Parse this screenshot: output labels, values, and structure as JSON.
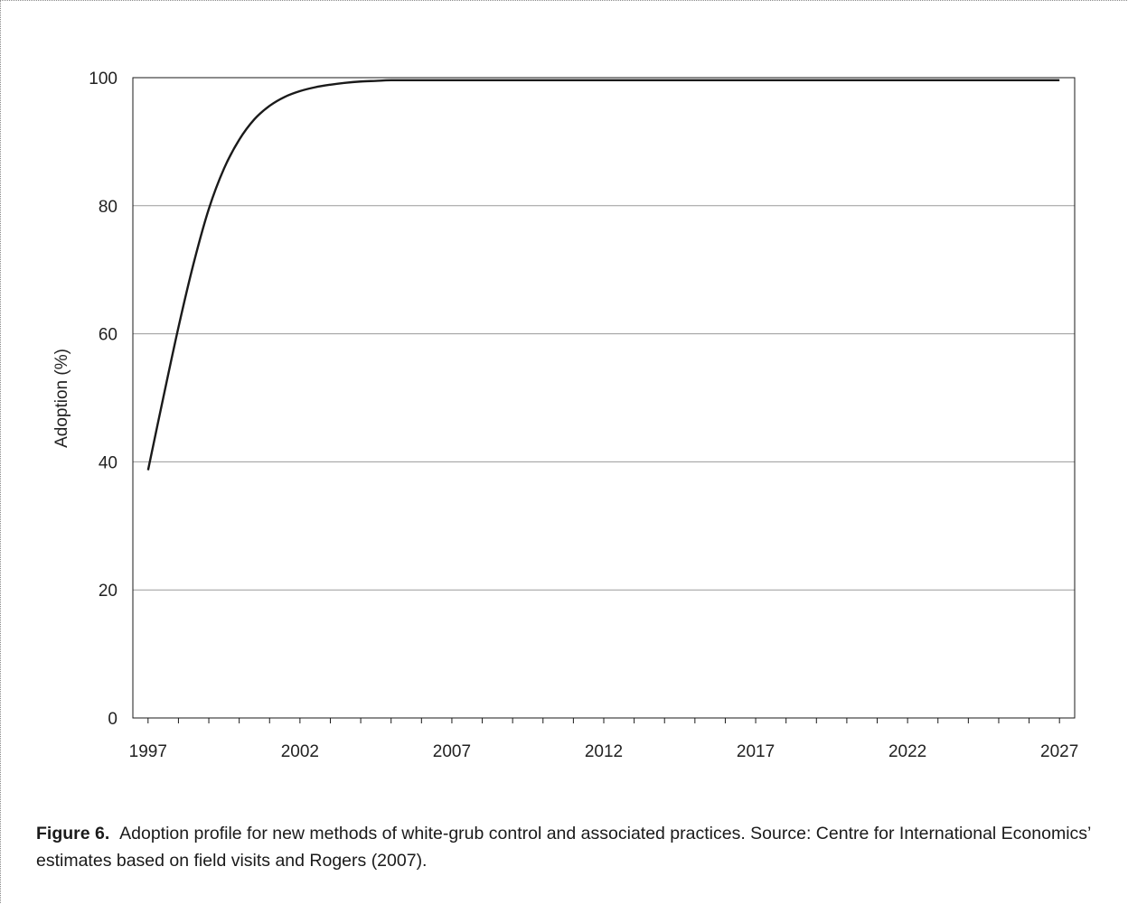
{
  "chart_data": {
    "type": "line",
    "title": "",
    "xlabel": "",
    "ylabel": "Adoption (%)",
    "xlim": [
      1996.5,
      2027.5
    ],
    "ylim": [
      0,
      100
    ],
    "x_tick_labels": [
      "1997",
      "2002",
      "2007",
      "2012",
      "2017",
      "2022",
      "2027"
    ],
    "y_tick_labels": [
      "0",
      "20",
      "40",
      "60",
      "80",
      "100"
    ],
    "y_ticks": [
      0,
      20,
      40,
      60,
      80,
      100
    ],
    "grid": true,
    "legend": "none",
    "series": [
      {
        "color": "#1a1a1a",
        "x": [
          1997.0,
          1997.5,
          1998.0,
          1998.5,
          1999.0,
          1999.5,
          2000.0,
          2000.5,
          2001.0,
          2001.5,
          2002.0,
          2002.5,
          2003.0,
          2003.5,
          2004.0,
          2004.5,
          2005.0,
          2006.0,
          2008.0,
          2012.0,
          2017.0,
          2022.0,
          2027.0
        ],
        "y": [
          38.7,
          50.0,
          61.0,
          71.0,
          79.5,
          85.8,
          90.3,
          93.5,
          95.6,
          97.0,
          97.9,
          98.5,
          98.9,
          99.2,
          99.4,
          99.5,
          99.6,
          99.6,
          99.6,
          99.6,
          99.6,
          99.6,
          99.6
        ]
      }
    ]
  },
  "caption": {
    "label": "Figure 6.",
    "text": "Adoption profile for new methods of white-grub control and associated practices. Source: Centre for International Economics’ estimates based on field visits and Rogers (2007)."
  }
}
